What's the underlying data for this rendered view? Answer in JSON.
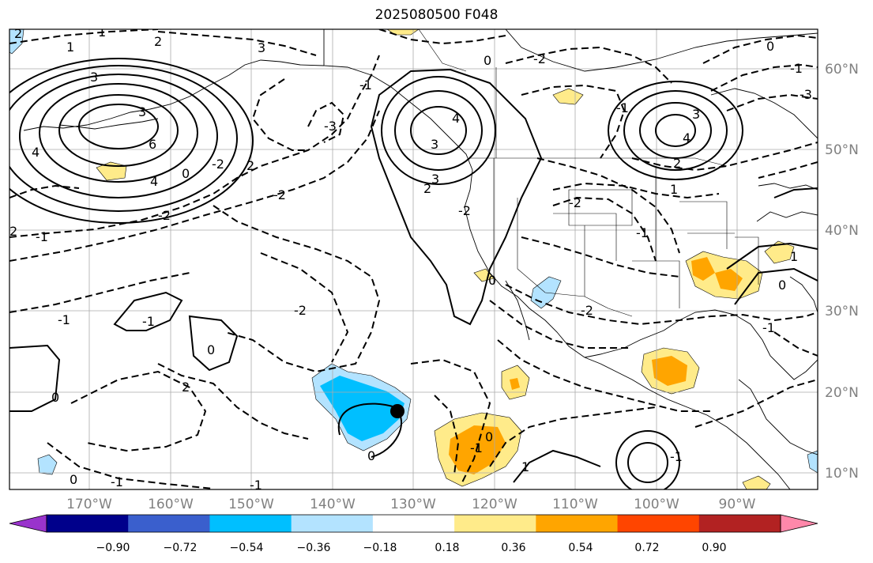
{
  "title": "2025080500 F048",
  "map": {
    "lon_labels": [
      "170°W",
      "160°W",
      "150°W",
      "140°W",
      "130°W",
      "120°W",
      "110°W",
      "100°W",
      "90°W"
    ],
    "lat_labels": [
      "60°N",
      "50°N",
      "40°N",
      "30°N",
      "20°N",
      "10°N"
    ],
    "contour_labels": [
      "1",
      "2",
      "3",
      "3",
      "2",
      "1",
      "-1",
      "3",
      "4",
      "6",
      "4",
      "0",
      "-2",
      "2",
      "0",
      "-2",
      "-3",
      "3",
      "4",
      "3",
      "2",
      "-2",
      "-1",
      "0",
      "-1",
      "-3",
      "2",
      "4",
      "3",
      "1",
      "-2",
      "0",
      "-2",
      "-1",
      "-2",
      "2",
      "-1",
      "-2",
      "-2",
      "-1",
      "-1",
      "0",
      "0",
      "2",
      "-1",
      "0",
      "1",
      "0",
      "-1",
      "1",
      "-1",
      "0",
      "-1",
      "0",
      "-1"
    ],
    "marker": "storm-center"
  },
  "colorbar": {
    "ticks": [
      "−0.90",
      "−0.72",
      "−0.54",
      "−0.36",
      "−0.18",
      "0.18",
      "0.36",
      "0.54",
      "0.72",
      "0.90"
    ],
    "colors": [
      "#9933cc",
      "#00008b",
      "#3a5fcd",
      "#00bfff",
      "#b3e3ff",
      "#ffffff",
      "#ffeb8a",
      "#ffa500",
      "#ff4500",
      "#b22222",
      "#ff88aa"
    ]
  }
}
